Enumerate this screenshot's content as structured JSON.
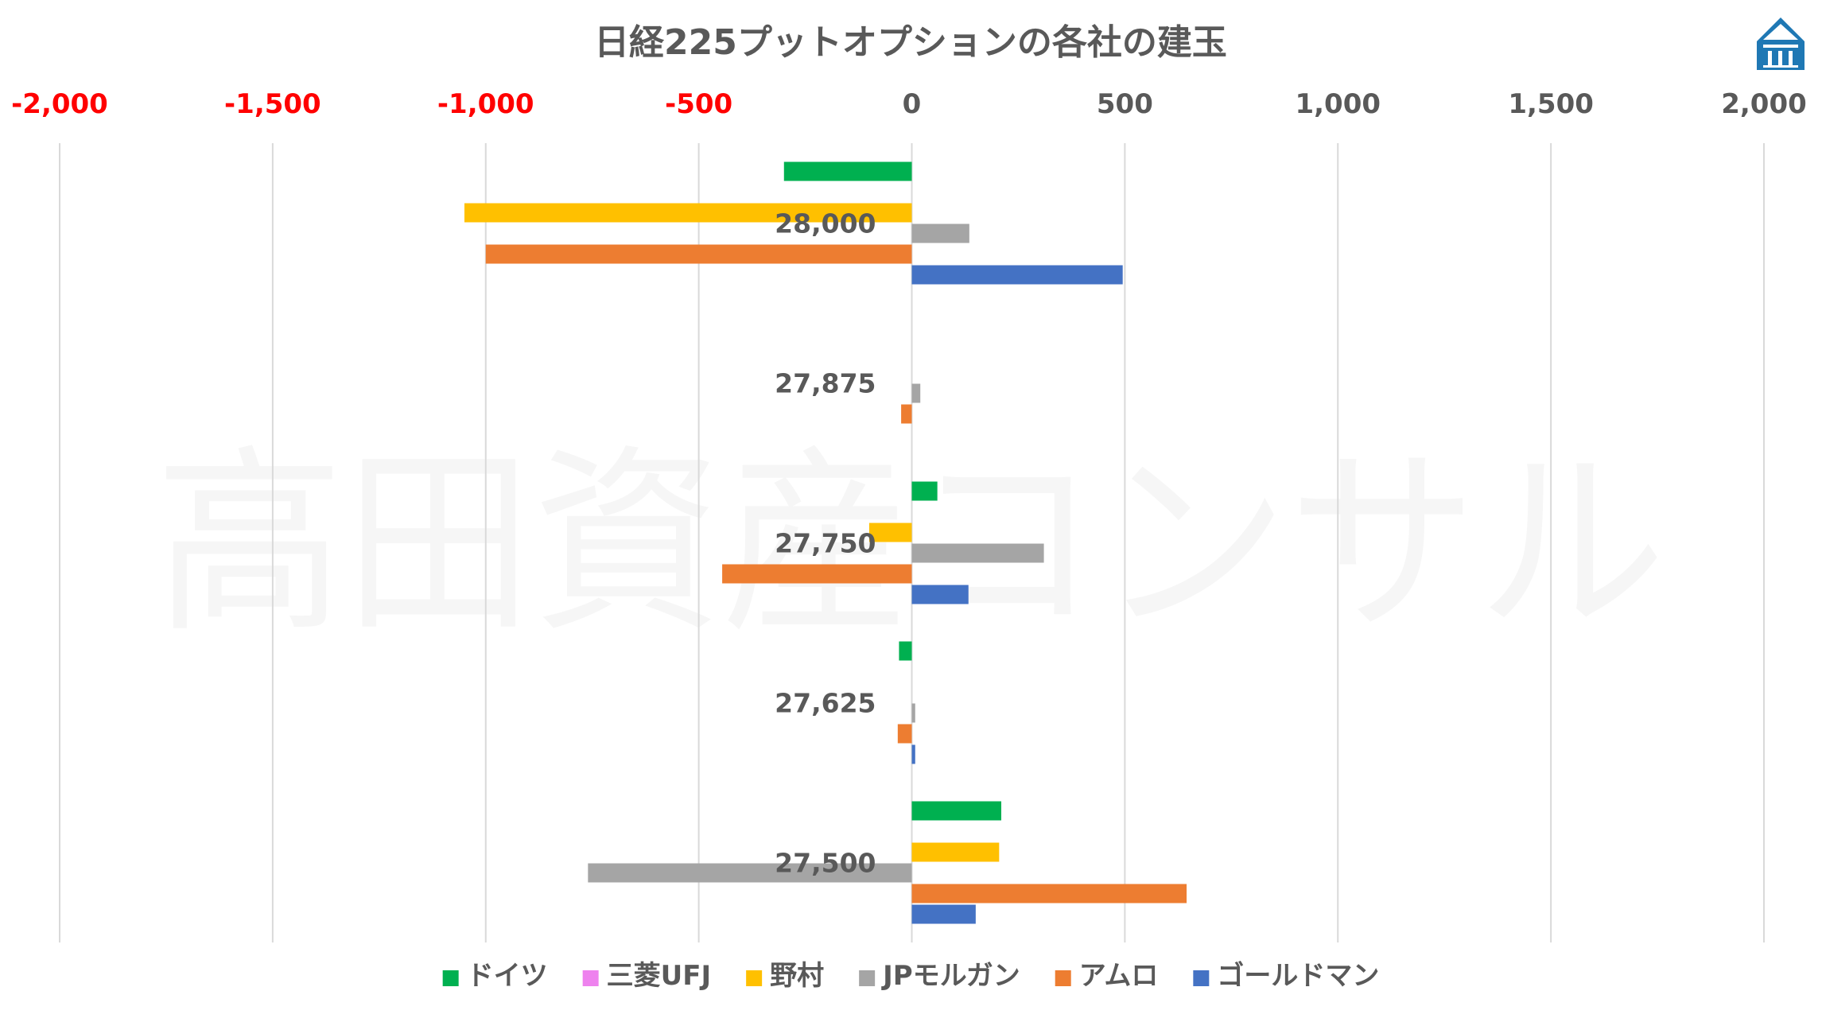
{
  "chart_data": {
    "type": "bar",
    "orientation": "horizontal",
    "title": "日経225プットオプションの各社の建玉",
    "xlim": [
      -2000,
      2000
    ],
    "x_ticks": [
      -2000,
      -1500,
      -1000,
      -500,
      0,
      500,
      1000,
      1500,
      2000
    ],
    "x_tick_labels": [
      "-2,000",
      "-1,500",
      "-1,000",
      "-500",
      "0",
      "500",
      "1,000",
      "1,500",
      "2,000"
    ],
    "categories": [
      "28,000",
      "27,875",
      "27,750",
      "27,625",
      "27,500"
    ],
    "grid": "vertical",
    "legend_position": "bottom",
    "series": [
      {
        "name": "ドイツ",
        "color": "#00B050",
        "values": [
          -300,
          0,
          60,
          -30,
          210
        ]
      },
      {
        "name": "三菱UFJ",
        "color": "#EE82EE",
        "values": [
          0,
          0,
          0,
          0,
          0
        ]
      },
      {
        "name": "野村",
        "color": "#FFC000",
        "values": [
          -1050,
          0,
          -100,
          0,
          205
        ]
      },
      {
        "name": "JPモルガン",
        "color": "#A5A5A5",
        "values": [
          135,
          20,
          310,
          8,
          -760
        ]
      },
      {
        "name": "アムロ",
        "color": "#ED7D31",
        "values": [
          -1000,
          -25,
          -445,
          -33,
          645
        ]
      },
      {
        "name": "ゴールドマン",
        "color": "#4472C4",
        "values": [
          495,
          0,
          133,
          8,
          150
        ]
      }
    ],
    "negative_tick_color": "#FF0000",
    "positive_tick_color": "#595959"
  },
  "watermark": "高田資産コンサル",
  "logo": {
    "name": "building-logo-icon",
    "color": "#1F78B4"
  }
}
